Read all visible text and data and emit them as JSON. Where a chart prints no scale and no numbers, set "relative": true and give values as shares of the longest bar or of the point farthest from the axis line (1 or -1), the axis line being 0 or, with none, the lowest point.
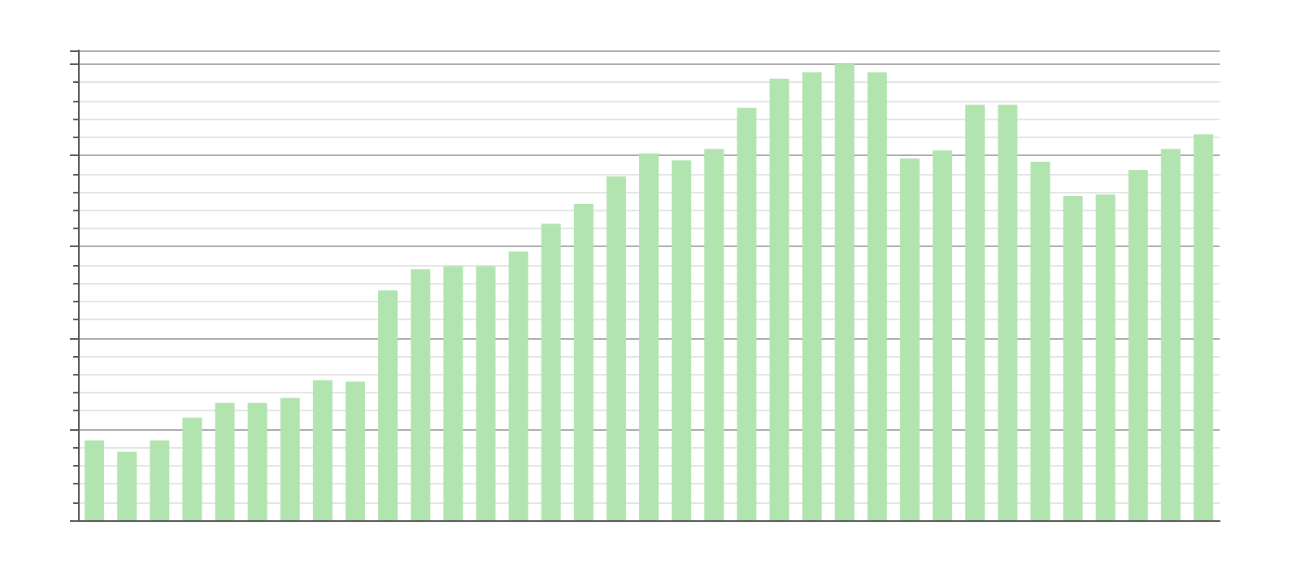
{
  "chart_data": {
    "type": "bar",
    "relative": true,
    "grid": "y",
    "color": "#b2e4b0",
    "categories": [
      null,
      null,
      null,
      null,
      null,
      null,
      null,
      null,
      null,
      null,
      null,
      null,
      null,
      null,
      null,
      null,
      null,
      null,
      null,
      null,
      null,
      null,
      null,
      null,
      null,
      null,
      null,
      null,
      null,
      null,
      null,
      null,
      null,
      null,
      null
    ],
    "values": [
      0.175,
      0.15,
      0.175,
      0.225,
      0.257,
      0.257,
      0.268,
      0.307,
      0.304,
      0.504,
      0.55,
      0.557,
      0.557,
      0.589,
      0.65,
      0.693,
      0.754,
      0.804,
      0.789,
      0.814,
      0.904,
      0.968,
      0.982,
      1,
      0.982,
      0.793,
      0.811,
      0.911,
      0.911,
      0.786,
      0.711,
      0.714,
      0.768,
      0.814,
      0.846
    ]
  }
}
